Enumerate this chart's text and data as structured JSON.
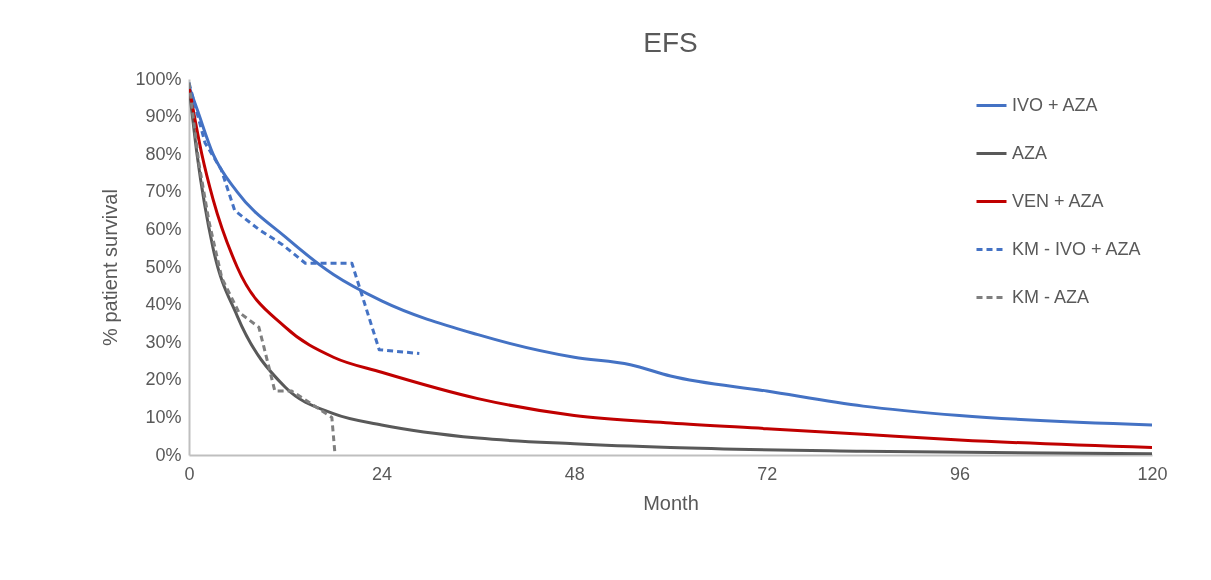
{
  "chart_data": {
    "type": "line",
    "title": "EFS",
    "xlabel": "Month",
    "ylabel": "% patient survival",
    "xlim": [
      0,
      120
    ],
    "xticks": [
      0,
      24,
      48,
      72,
      96,
      120
    ],
    "ylim": [
      0,
      100
    ],
    "yticks": [
      {
        "value": 0,
        "label": "0%"
      },
      {
        "value": 10,
        "label": "10%"
      },
      {
        "value": 20,
        "label": "20%"
      },
      {
        "value": 30,
        "label": "30%"
      },
      {
        "value": 40,
        "label": "40%"
      },
      {
        "value": 50,
        "label": "50%"
      },
      {
        "value": 60,
        "label": "60%"
      },
      {
        "value": 70,
        "label": "70%"
      },
      {
        "value": 80,
        "label": "80%"
      },
      {
        "value": 90,
        "label": "90%"
      },
      {
        "value": 100,
        "label": "100%"
      }
    ],
    "grid": false,
    "legend": "top right",
    "marker": "none",
    "series": [
      {
        "name": "IVO + AZA",
        "color": "#4472c4",
        "line_style": "solid",
        "x": [
          0,
          1,
          3,
          6,
          12,
          18,
          24,
          36,
          48,
          55,
          60,
          72,
          84,
          96,
          120
        ],
        "values": [
          98,
          92,
          80,
          70,
          58,
          48,
          41,
          32,
          26,
          24,
          21,
          17,
          13,
          10.5,
          8
        ]
      },
      {
        "name": "AZA",
        "color": "#595959",
        "line_style": "solid",
        "x": [
          0,
          1,
          3,
          6,
          12,
          18,
          24,
          36,
          48,
          60,
          84,
          120
        ],
        "values": [
          98,
          80,
          55,
          37,
          18,
          11,
          8,
          4.5,
          3,
          2,
          1,
          0.3
        ]
      },
      {
        "name": "VEN + AZA",
        "color": "#c00000",
        "line_style": "solid",
        "x": [
          0,
          1.6,
          3,
          6,
          12,
          18,
          24,
          36,
          48,
          60,
          72,
          84,
          96,
          120
        ],
        "values": [
          98,
          80,
          68,
          50,
          34,
          26,
          22,
          15,
          10.5,
          8.5,
          7,
          5.5,
          4,
          2
        ]
      },
      {
        "name": "KM - IVO + AZA",
        "color": "#4472c4",
        "line_style": "dashed",
        "x": [
          0,
          2,
          4,
          5.7,
          8.7,
          11.6,
          14.5,
          20.3,
          23.7,
          28.7
        ],
        "values": [
          99,
          83,
          76,
          65,
          60,
          56,
          51,
          51,
          28,
          27
        ]
      },
      {
        "name": "KM - AZA",
        "color": "#7f7f7f",
        "line_style": "dashed",
        "x": [
          0,
          1.2,
          2.5,
          4.1,
          6.2,
          8.7,
          9.3,
          10.7,
          12.8,
          17.8,
          18.2
        ],
        "values": [
          99,
          78,
          62,
          47,
          38,
          34,
          29,
          17,
          17,
          10,
          0
        ]
      }
    ]
  }
}
